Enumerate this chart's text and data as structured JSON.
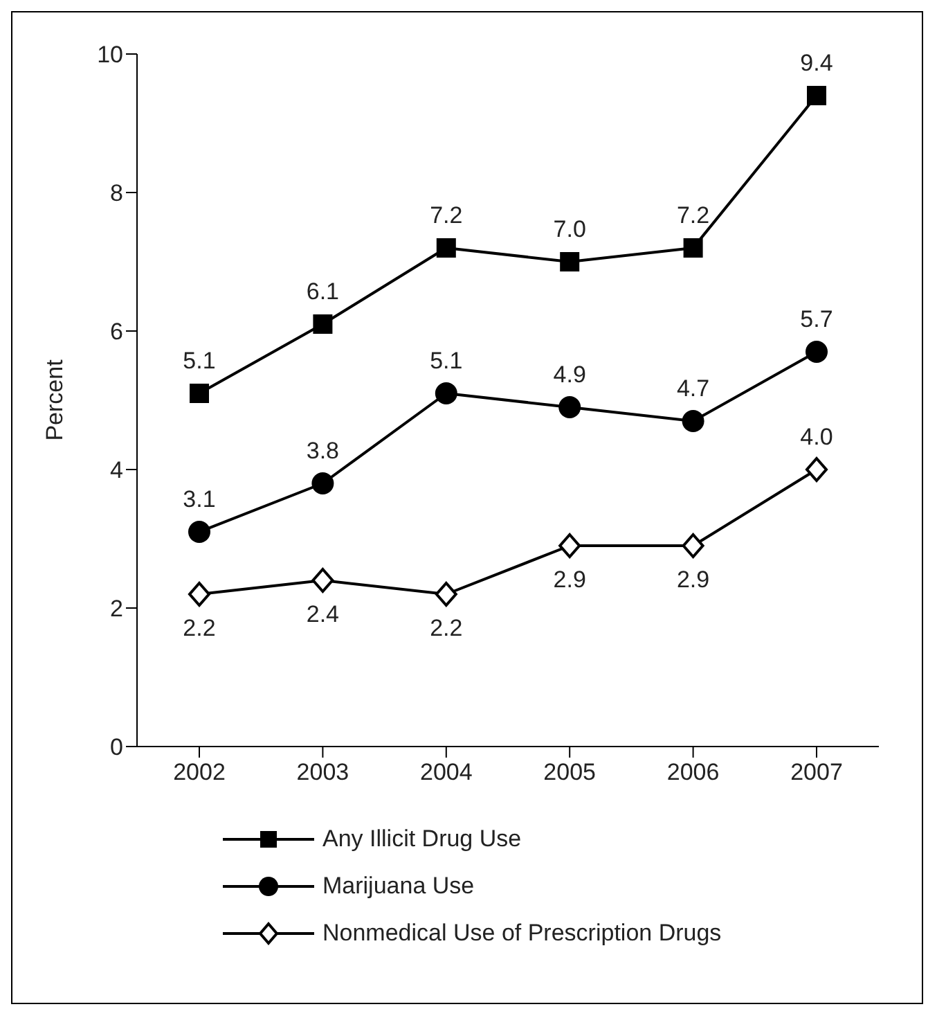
{
  "chart_data": {
    "type": "line",
    "ylabel": "Percent",
    "categories": [
      "2002",
      "2003",
      "2004",
      "2005",
      "2006",
      "2007"
    ],
    "series": [
      {
        "name": "Any Illicit Drug Use",
        "color": "#000000",
        "marker": "square",
        "values": [
          5.1,
          6.1,
          7.2,
          7.0,
          7.2,
          9.4
        ],
        "value_labels": [
          "5.1",
          "6.1",
          "7.2",
          "7.0",
          "7.2",
          "9.4"
        ]
      },
      {
        "name": "Marijuana Use",
        "color": "#000000",
        "marker": "circle",
        "values": [
          3.1,
          3.8,
          5.1,
          4.9,
          4.7,
          5.7
        ],
        "value_labels": [
          "3.1",
          "3.8",
          "5.1",
          "4.9",
          "4.7",
          "5.7"
        ]
      },
      {
        "name": "Nonmedical Use of Prescription Drugs",
        "color": "#000000",
        "marker": "diamond",
        "values": [
          2.2,
          2.4,
          2.2,
          2.9,
          2.9,
          4.0
        ],
        "value_labels": [
          "2.2",
          "2.4",
          "2.2",
          "2.9",
          "2.9",
          "4.0"
        ]
      }
    ],
    "ylim": [
      0,
      10
    ],
    "yticks": [
      0,
      2,
      4,
      6,
      8,
      10
    ],
    "grid": false,
    "legend": "bottom"
  }
}
